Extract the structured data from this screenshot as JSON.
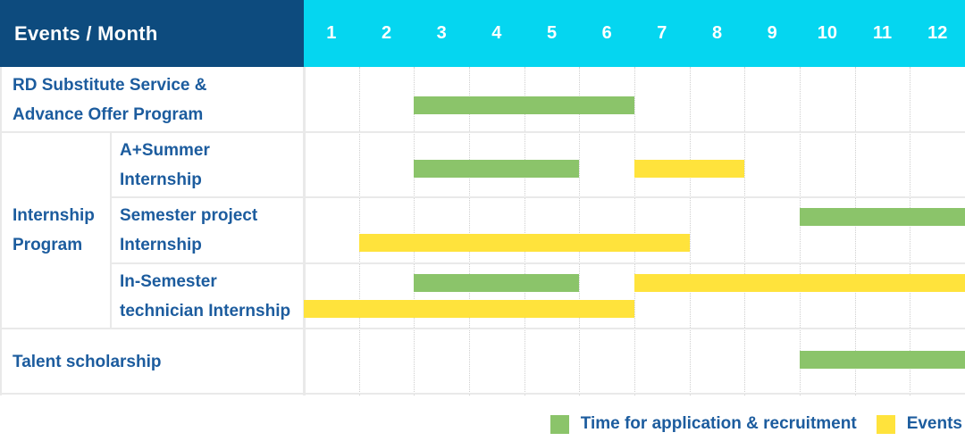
{
  "colors": {
    "background": "#FFFFFF",
    "header_bg": "#0D4B7E",
    "months_bg": "#05D6F0",
    "header_text": "#FFFFFF",
    "label_text": "#1C5C9E",
    "grid_line": "#E9E9E9",
    "month_gridline": "#CFCFCF",
    "application_green": "#8BC46A",
    "events_yellow": "#FFE33C"
  },
  "chart_data": {
    "type": "gantt",
    "title": "Events / Month",
    "x_axis_label": "Month",
    "x_ticks": [
      "1",
      "2",
      "3",
      "4",
      "5",
      "6",
      "7",
      "8",
      "9",
      "10",
      "11",
      "12"
    ],
    "x_range": [
      1,
      12
    ],
    "grid": "dotted-vertical-month-lines",
    "legend_position": "bottom-right",
    "series": [
      {
        "key": "application",
        "name": "Time for application & recruitment",
        "color": "#8BC46A"
      },
      {
        "key": "events",
        "name": "Events",
        "color": "#FFE33C"
      }
    ],
    "group_label": {
      "label_lines": [
        "Internship",
        "Program"
      ],
      "spans_rows": [
        1,
        3
      ]
    },
    "rows": [
      {
        "group": "",
        "label_lines": [
          "RD Substitute Service &",
          "Advance Offer Program"
        ],
        "bars": [
          {
            "series": "application",
            "start_month": 3,
            "end_month": 6,
            "line": 0
          }
        ]
      },
      {
        "group": "Internship Program",
        "label_lines": [
          "A+Summer",
          "Internship"
        ],
        "bars": [
          {
            "series": "application",
            "start_month": 3,
            "end_month": 5,
            "line": 0
          },
          {
            "series": "events",
            "start_month": 7,
            "end_month": 8,
            "line": 0
          }
        ]
      },
      {
        "group": "Internship Program",
        "label_lines": [
          "Semester project",
          "Internship"
        ],
        "bars": [
          {
            "series": "application",
            "start_month": 10,
            "end_month": 12,
            "line": 0
          },
          {
            "series": "events",
            "start_month": 2,
            "end_month": 7,
            "line": 1
          }
        ]
      },
      {
        "group": "Internship Program",
        "label_lines": [
          "In-Semester",
          "technician Internship"
        ],
        "bars": [
          {
            "series": "application",
            "start_month": 3,
            "end_month": 5,
            "line": 0
          },
          {
            "series": "events",
            "start_month": 7,
            "end_month": 12,
            "line": 0
          },
          {
            "series": "events",
            "start_month": 1,
            "end_month": 6,
            "line": 1
          }
        ]
      },
      {
        "group": "",
        "label_lines": [
          "Talent scholarship"
        ],
        "bars": [
          {
            "series": "application",
            "start_month": 10,
            "end_month": 12,
            "line": 0
          }
        ]
      }
    ]
  }
}
